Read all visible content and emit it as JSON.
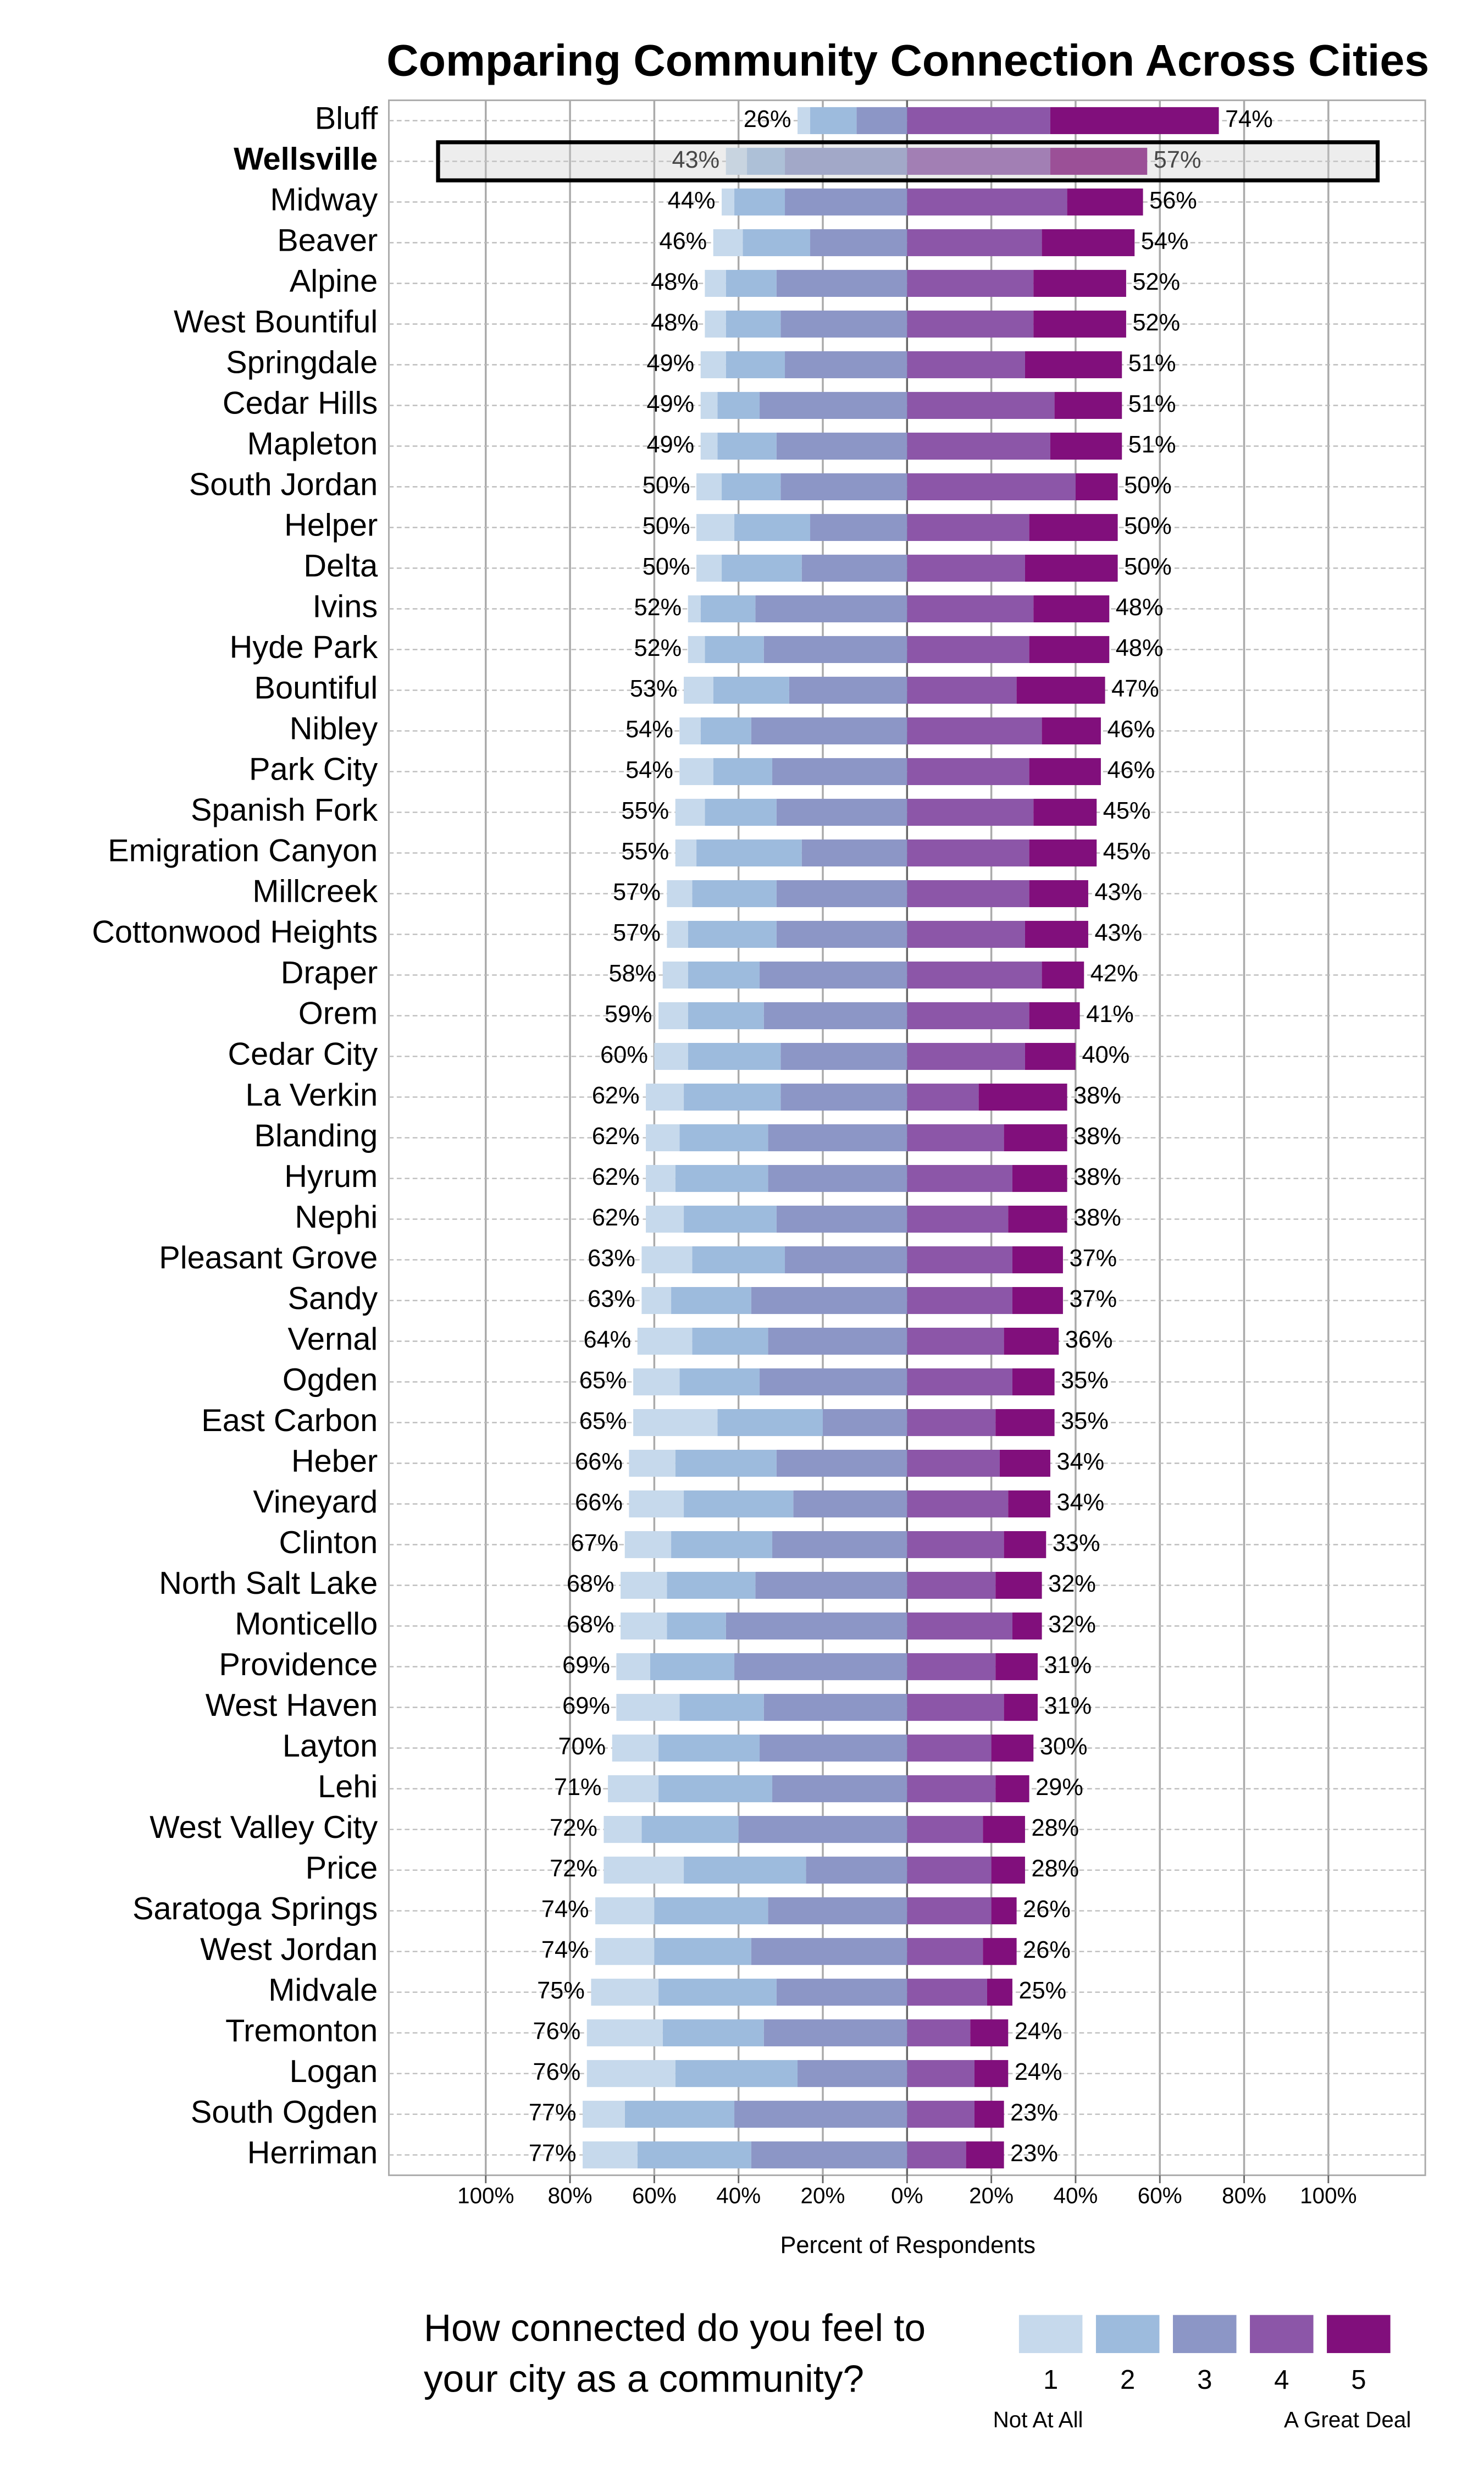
{
  "chart_data": {
    "type": "diverging-bar",
    "title": "Comparing Community Connection Across Cities",
    "x_label": "Percent of Respondents",
    "highlight": "Wellsville",
    "categories": [
      "Bluff",
      "Wellsville",
      "Midway",
      "Beaver",
      "Alpine",
      "West Bountiful",
      "Springdale",
      "Cedar Hills",
      "Mapleton",
      "South Jordan",
      "Helper",
      "Delta",
      "Ivins",
      "Hyde Park",
      "Bountiful",
      "Nibley",
      "Park City",
      "Spanish Fork",
      "Emigration Canyon",
      "Millcreek",
      "Cottonwood Heights",
      "Draper",
      "Orem",
      "Cedar City",
      "La Verkin",
      "Blanding",
      "Hyrum",
      "Nephi",
      "Pleasant Grove",
      "Sandy",
      "Vernal",
      "Ogden",
      "East Carbon",
      "Heber",
      "Vineyard",
      "Clinton",
      "North Salt Lake",
      "Monticello",
      "Providence",
      "West Haven",
      "Layton",
      "Lehi",
      "West Valley City",
      "Price",
      "Saratoga Springs",
      "West Jordan",
      "Midvale",
      "Tremonton",
      "Logan",
      "South Ogden",
      "Herriman"
    ],
    "series": [
      {
        "name": "1",
        "color": "#c6d9ec",
        "side": "left",
        "values": [
          3,
          5,
          3,
          7,
          5,
          5,
          6,
          4,
          4,
          6,
          9,
          6,
          3,
          4,
          7,
          5,
          8,
          7,
          5,
          6,
          5,
          6,
          7,
          8,
          9,
          8,
          7,
          9,
          12,
          7,
          13,
          11,
          20,
          11,
          13,
          11,
          11,
          11,
          8,
          15,
          11,
          12,
          9,
          19,
          14,
          14,
          16,
          18,
          21,
          10,
          13
        ]
      },
      {
        "name": "2",
        "color": "#9dbbdd",
        "side": "left",
        "values": [
          11,
          9,
          12,
          16,
          12,
          13,
          14,
          10,
          14,
          14,
          18,
          19,
          13,
          14,
          18,
          12,
          14,
          17,
          25,
          20,
          21,
          17,
          18,
          22,
          23,
          21,
          22,
          22,
          22,
          19,
          18,
          19,
          25,
          24,
          26,
          24,
          21,
          14,
          20,
          20,
          24,
          27,
          23,
          29,
          27,
          23,
          28,
          24,
          29,
          26,
          27
        ]
      },
      {
        "name": "3",
        "color": "#8c96c6",
        "side": "left",
        "values": [
          12,
          29,
          29,
          23,
          31,
          30,
          29,
          35,
          31,
          30,
          23,
          25,
          36,
          34,
          28,
          37,
          32,
          31,
          25,
          31,
          31,
          35,
          34,
          30,
          30,
          33,
          33,
          31,
          29,
          37,
          33,
          35,
          20,
          31,
          27,
          32,
          36,
          43,
          41,
          34,
          35,
          32,
          40,
          24,
          33,
          37,
          31,
          34,
          26,
          41,
          37
        ]
      },
      {
        "name": "4",
        "color": "#8c56a8",
        "side": "right",
        "values": [
          34,
          34,
          38,
          32,
          30,
          30,
          28,
          35,
          34,
          40,
          29,
          28,
          30,
          29,
          26,
          32,
          29,
          30,
          29,
          29,
          28,
          32,
          29,
          28,
          17,
          23,
          25,
          24,
          25,
          25,
          23,
          25,
          21,
          22,
          24,
          23,
          21,
          25,
          21,
          23,
          20,
          21,
          18,
          20,
          20,
          18,
          19,
          15,
          16,
          16,
          14
        ]
      },
      {
        "name": "5",
        "color": "#810f7c",
        "side": "right",
        "values": [
          40,
          23,
          18,
          22,
          22,
          22,
          23,
          16,
          17,
          10,
          21,
          22,
          18,
          19,
          21,
          14,
          17,
          15,
          16,
          14,
          15,
          10,
          12,
          12,
          21,
          15,
          13,
          14,
          12,
          12,
          13,
          10,
          14,
          12,
          10,
          10,
          11,
          7,
          10,
          8,
          10,
          8,
          10,
          8,
          6,
          8,
          6,
          9,
          8,
          7,
          9
        ]
      }
    ],
    "left_labels": [
      "26%",
      "43%",
      "44%",
      "46%",
      "48%",
      "48%",
      "49%",
      "49%",
      "49%",
      "50%",
      "50%",
      "50%",
      "52%",
      "52%",
      "53%",
      "54%",
      "54%",
      "55%",
      "55%",
      "57%",
      "57%",
      "58%",
      "59%",
      "60%",
      "62%",
      "62%",
      "62%",
      "62%",
      "63%",
      "63%",
      "64%",
      "65%",
      "65%",
      "66%",
      "66%",
      "67%",
      "68%",
      "68%",
      "69%",
      "69%",
      "70%",
      "71%",
      "72%",
      "72%",
      "74%",
      "74%",
      "75%",
      "76%",
      "76%",
      "77%",
      "77%"
    ],
    "right_labels": [
      "74%",
      "57%",
      "56%",
      "54%",
      "52%",
      "52%",
      "51%",
      "51%",
      "51%",
      "50%",
      "50%",
      "50%",
      "48%",
      "48%",
      "47%",
      "46%",
      "46%",
      "45%",
      "45%",
      "43%",
      "43%",
      "42%",
      "41%",
      "40%",
      "38%",
      "38%",
      "38%",
      "38%",
      "37%",
      "37%",
      "36%",
      "35%",
      "35%",
      "34%",
      "34%",
      "33%",
      "32%",
      "32%",
      "31%",
      "31%",
      "30%",
      "29%",
      "28%",
      "28%",
      "26%",
      "26%",
      "25%",
      "24%",
      "24%",
      "23%",
      "23%"
    ],
    "xlim": [
      -123,
      123
    ],
    "xticks": [
      {
        "value": -100,
        "label": "100%"
      },
      {
        "value": -80,
        "label": "80%"
      },
      {
        "value": -60,
        "label": "60%"
      },
      {
        "value": -40,
        "label": "40%"
      },
      {
        "value": -20,
        "label": "20%"
      },
      {
        "value": 0,
        "label": "0%"
      },
      {
        "value": 20,
        "label": "20%"
      },
      {
        "value": 40,
        "label": "40%"
      },
      {
        "value": 60,
        "label": "60%"
      },
      {
        "value": 80,
        "label": "80%"
      },
      {
        "value": 100,
        "label": "100%"
      }
    ],
    "grid": true,
    "legend": {
      "title": [
        "How connected do you feel to",
        "your city as a community?"
      ],
      "low_label": "Not At All",
      "high_label": "A Great Deal",
      "position": "bottom-right"
    }
  }
}
